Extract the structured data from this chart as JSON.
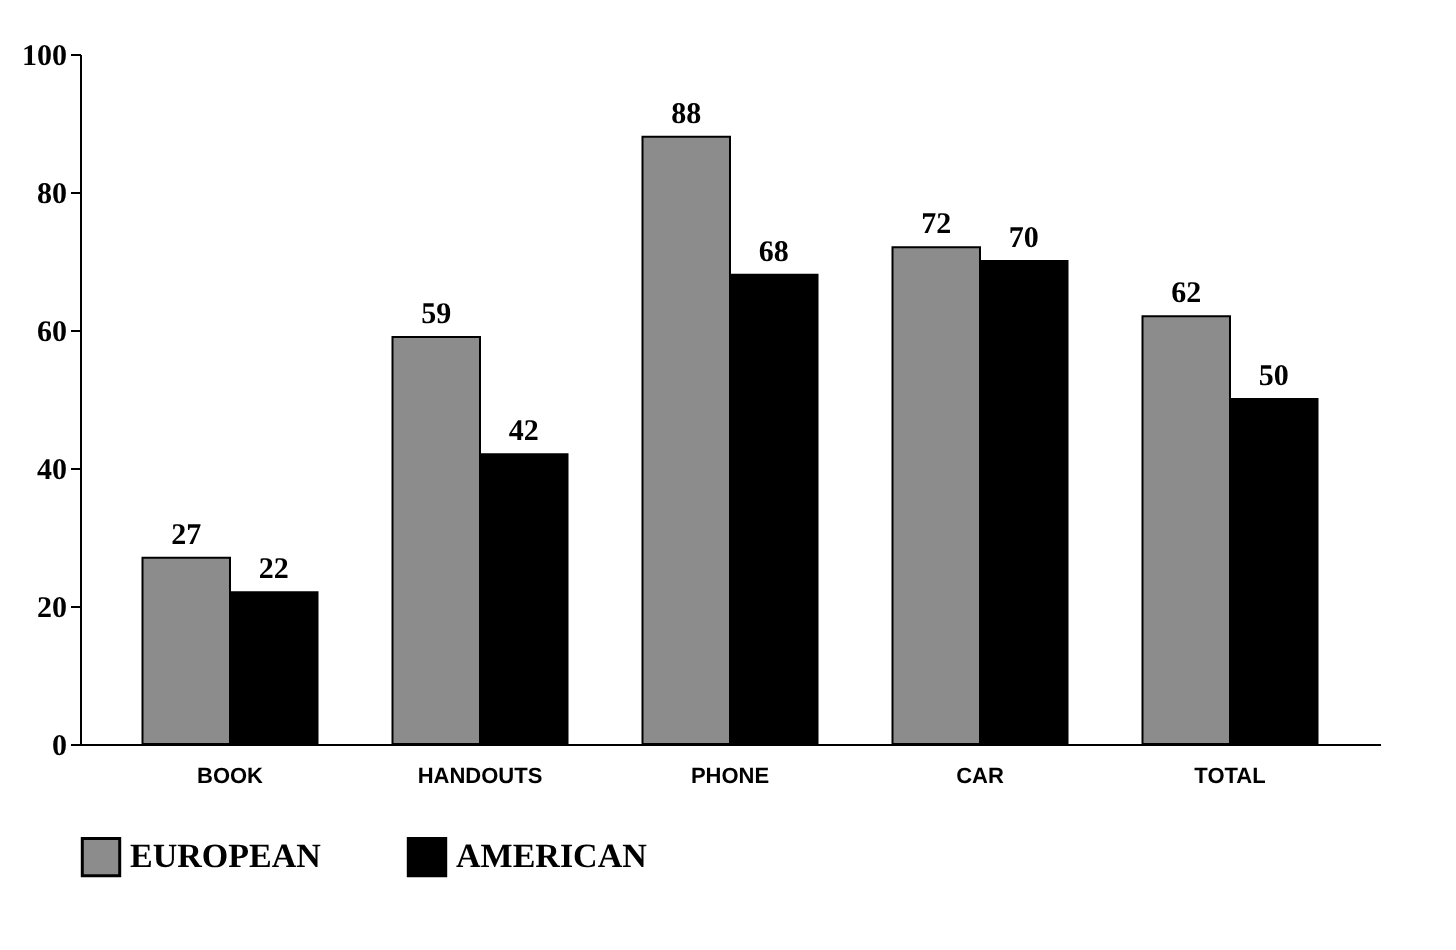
{
  "chart_data": {
    "type": "bar",
    "categories": [
      "BOOK",
      "HANDOUTS",
      "PHONE",
      "CAR",
      "TOTAL"
    ],
    "series": [
      {
        "name": "EUROPEAN",
        "color": "#8c8c8c",
        "values": [
          27,
          59,
          88,
          72,
          62
        ]
      },
      {
        "name": "AMERICAN",
        "color": "#000000",
        "values": [
          22,
          42,
          68,
          70,
          50
        ]
      }
    ],
    "ylim": [
      0,
      100
    ],
    "yticks": [
      0,
      20,
      40,
      60,
      80,
      100
    ],
    "grid": false,
    "legend": "bottom",
    "data_labels": true
  }
}
